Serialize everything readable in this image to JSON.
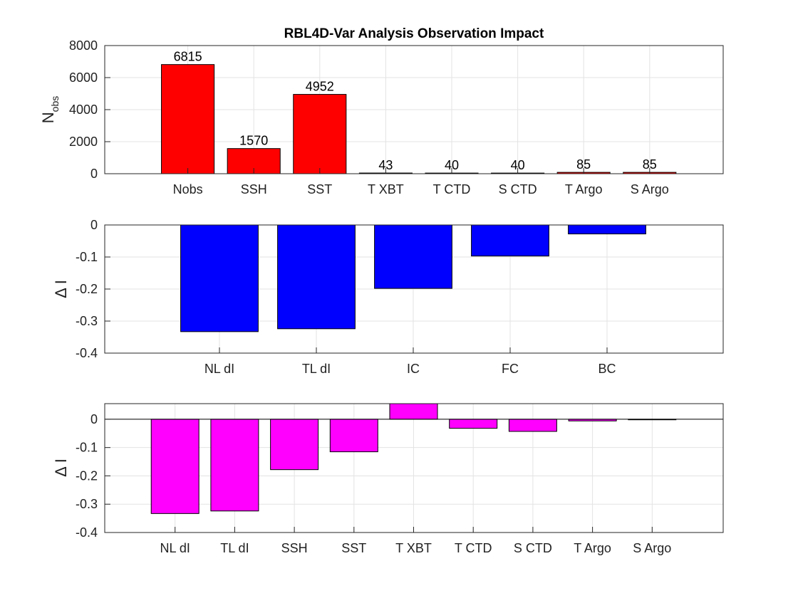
{
  "chart_data": [
    {
      "type": "bar",
      "title": "RBL4D-Var Analysis Observation Impact",
      "ylabel": "N",
      "ylabel_subscript": "obs",
      "xlabel": "",
      "categories": [
        "Nobs",
        "SSH",
        "SST",
        "T XBT",
        "T CTD",
        "S CTD",
        "T Argo",
        "S Argo"
      ],
      "values": [
        6815,
        1570,
        4952,
        43,
        40,
        40,
        85,
        85
      ],
      "value_labels": [
        "6815",
        "1570",
        "4952",
        "43",
        "40",
        "40",
        "85",
        "85"
      ],
      "ylim": [
        0,
        8000
      ],
      "yticks": [
        0,
        2000,
        4000,
        6000,
        8000
      ],
      "ytick_labels": [
        "0",
        "2000",
        "4000",
        "6000",
        "8000"
      ],
      "grid": true,
      "color": "#ff0000"
    },
    {
      "type": "bar",
      "title": "",
      "ylabel": "Δ I",
      "xlabel": "",
      "categories": [
        "NL dI",
        "TL dI",
        "IC",
        "FC",
        "BC"
      ],
      "values": [
        -0.333,
        -0.324,
        -0.198,
        -0.097,
        -0.028
      ],
      "ylim": [
        -0.4,
        0
      ],
      "yticks": [
        -0.4,
        -0.3,
        -0.2,
        -0.1,
        0
      ],
      "ytick_labels": [
        "-0.4",
        "-0.3",
        "-0.2",
        "-0.1",
        "0"
      ],
      "grid": true,
      "color": "#0000ff"
    },
    {
      "type": "bar",
      "title": "",
      "ylabel": "Δ I",
      "xlabel": "",
      "categories": [
        "NL dI",
        "TL dI",
        "SSH",
        "SST",
        "T XBT",
        "T CTD",
        "S CTD",
        "T Argo",
        "S Argo"
      ],
      "values": [
        -0.333,
        -0.324,
        -0.178,
        -0.115,
        0.06,
        -0.032,
        -0.043,
        -0.006,
        -0.002
      ],
      "ylim": [
        -0.4,
        0.055
      ],
      "yticks": [
        -0.4,
        -0.3,
        -0.2,
        -0.1,
        0
      ],
      "ytick_labels": [
        "-0.4",
        "-0.3",
        "-0.2",
        "-0.1",
        "0"
      ],
      "grid": true,
      "color": "#ff00ff"
    }
  ]
}
